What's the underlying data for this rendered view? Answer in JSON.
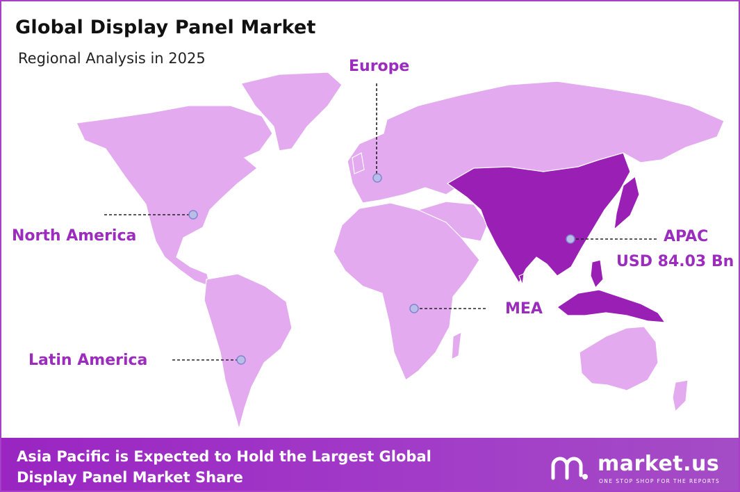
{
  "header": {
    "title": "Global Display Panel Market",
    "subtitle": "Regional Analysis in 2025"
  },
  "regions": {
    "europe": "Europe",
    "north_america": "North America",
    "apac": "APAC",
    "apac_value": "USD 84.03 Bn",
    "mea": "MEA",
    "latin_america": "Latin America"
  },
  "colors": {
    "highlight_region": "#9a1fb5",
    "map_land": "#e3aaf0",
    "label": "#9b2cbd",
    "footer": "#a23bc8",
    "border": "#a83fc9"
  },
  "footer": {
    "line1": "Asia Pacific is Expected to Hold the Largest Global",
    "line2": "Display Panel Market Share"
  },
  "brand": {
    "logo_icon": "market-us-logo-icon",
    "name": "market.us",
    "tagline": "ONE STOP SHOP FOR THE REPORTS"
  }
}
